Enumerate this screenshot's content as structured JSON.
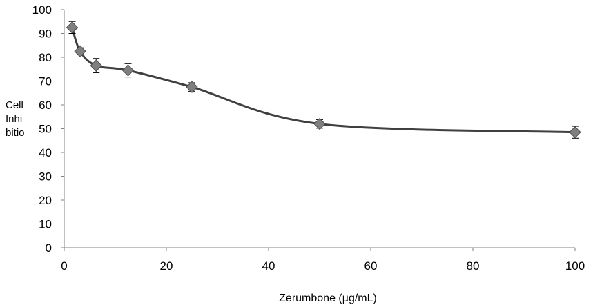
{
  "chart_data": {
    "type": "line",
    "title": "",
    "xlabel": "Zerumbone (µg/mL)",
    "ylabel": "Cell Inhibitio",
    "xlim": [
      0,
      100
    ],
    "ylim": [
      0,
      100
    ],
    "x_ticks": [
      0,
      20,
      40,
      60,
      80,
      100
    ],
    "y_ticks": [
      0,
      10,
      20,
      30,
      40,
      50,
      60,
      70,
      80,
      90,
      100
    ],
    "grid": false,
    "legend": "none",
    "series": [
      {
        "x": [
          1.56,
          3.12,
          6.25,
          12.5,
          25,
          50,
          100
        ],
        "y": [
          92.5,
          82.5,
          76.5,
          74.5,
          67.5,
          52,
          48.5
        ],
        "error": [
          2.5,
          1.5,
          3,
          2.8,
          1.8,
          1.8,
          2.5
        ],
        "marker": "diamond",
        "line_color": "#404040",
        "marker_color": "#7f7f7f"
      }
    ]
  }
}
